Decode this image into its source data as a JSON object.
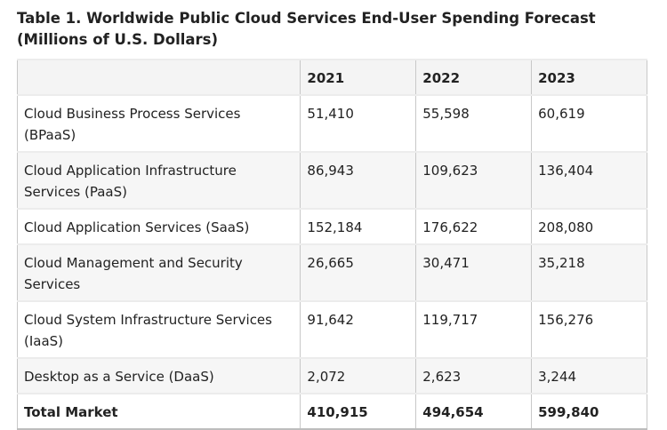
{
  "title": "Table 1. Worldwide Public Cloud Services End-User Spending Forecast (Millions of U.S. Dollars)",
  "table": {
    "headers": [
      "",
      "2021",
      "2022",
      "2023"
    ],
    "rows": [
      {
        "segment": "Cloud Business Process Services (BPaaS)",
        "values": [
          "51,410",
          "55,598",
          "60,619"
        ]
      },
      {
        "segment": "Cloud Application Infrastructure Services (PaaS)",
        "values": [
          "86,943",
          "109,623",
          "136,404"
        ]
      },
      {
        "segment": "Cloud Application Services (SaaS)",
        "values": [
          "152,184",
          "176,622",
          "208,080"
        ]
      },
      {
        "segment": "Cloud Management and Security Services",
        "values": [
          "26,665",
          "30,471",
          "35,218"
        ]
      },
      {
        "segment": "Cloud System Infrastructure Services (IaaS)",
        "values": [
          "91,642",
          "119,717",
          "156,276"
        ]
      },
      {
        "segment": "Desktop as a Service (DaaS)",
        "values": [
          "2,072",
          "2,623",
          "3,244"
        ]
      }
    ],
    "total": {
      "segment": "Total Market",
      "values": [
        "410,915",
        "494,654",
        "599,840"
      ]
    }
  }
}
